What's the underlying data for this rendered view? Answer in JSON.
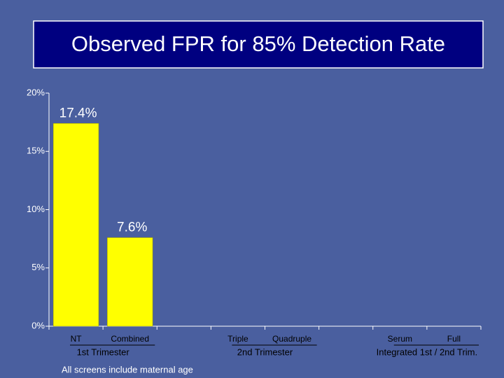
{
  "chart_data": {
    "type": "bar",
    "title": "Observed FPR for 85% Detection Rate",
    "categories": [
      "NT",
      "Combined",
      null,
      "Triple",
      "Quadruple",
      null,
      "Serum",
      "Full"
    ],
    "values": [
      17.4,
      7.6,
      null,
      null,
      null,
      null,
      null,
      null
    ],
    "value_labels": [
      "17.4%",
      "7.6%",
      null,
      null,
      null,
      null,
      null,
      null
    ],
    "color": "#ffff00",
    "groups": [
      "1st Trimester",
      "2nd Trimester",
      "Integrated 1st / 2nd Trim."
    ],
    "ylim": [
      0,
      20
    ],
    "yticks": [
      {
        "value": 0,
        "label": "0%"
      },
      {
        "value": 5,
        "label": "5%"
      },
      {
        "value": 10,
        "label": "10%"
      },
      {
        "value": 15,
        "label": "15%"
      },
      {
        "value": 20,
        "label": "20%"
      }
    ],
    "note": "All screens include maternal age"
  }
}
